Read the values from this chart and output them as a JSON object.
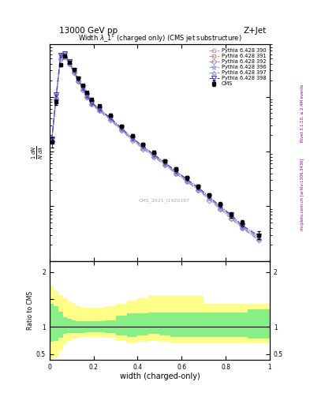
{
  "title_top": "13000 GeV pp",
  "title_right": "Z+Jet",
  "plot_title": "Width $\\lambda$_1$^1$ (charged only) (CMS jet substructure)",
  "xlabel": "width (charged-only)",
  "ylabel_ratio": "Ratio to CMS",
  "right_label_top": "Rivet 3.1.10, ≥ 2.4M events",
  "right_label_bot": "mcplots.cern.ch [arXiv:1306.3436]",
  "watermark": "CMS_2021_I1920187",
  "x_bins": [
    0.0,
    0.02,
    0.04,
    0.06,
    0.08,
    0.1,
    0.12,
    0.14,
    0.16,
    0.18,
    0.2,
    0.25,
    0.3,
    0.35,
    0.4,
    0.45,
    0.5,
    0.55,
    0.6,
    0.65,
    0.7,
    0.75,
    0.8,
    0.85,
    0.9,
    1.0
  ],
  "cms_values": [
    150,
    800,
    3800,
    5500,
    4300,
    3100,
    2200,
    1600,
    1200,
    900,
    680,
    460,
    290,
    195,
    135,
    98,
    68,
    48,
    33,
    23,
    16,
    11,
    7,
    5,
    3
  ],
  "cms_errors": [
    30,
    100,
    200,
    250,
    200,
    150,
    100,
    80,
    60,
    45,
    35,
    25,
    18,
    12,
    9,
    7,
    5,
    4,
    3,
    2,
    1.5,
    1,
    0.8,
    0.6,
    0.5
  ],
  "pythia_390": [
    160,
    950,
    5200,
    5700,
    4100,
    2850,
    1980,
    1390,
    1010,
    755,
    578,
    395,
    255,
    168,
    118,
    83,
    59,
    41,
    29,
    21,
    14,
    9.5,
    6.5,
    4.2,
    2.6
  ],
  "pythia_391": [
    158,
    920,
    5000,
    5500,
    4000,
    2800,
    1940,
    1360,
    990,
    738,
    562,
    385,
    248,
    163,
    114,
    81,
    57,
    40,
    28,
    20,
    14,
    9,
    6,
    4,
    2.5
  ],
  "pythia_392": [
    155,
    900,
    4900,
    5350,
    3950,
    2760,
    1910,
    1340,
    972,
    725,
    552,
    380,
    244,
    160,
    112,
    79,
    56,
    39,
    28,
    20,
    13,
    9,
    6,
    4,
    2.4
  ],
  "pythia_396": [
    168,
    1050,
    5700,
    6100,
    4350,
    2980,
    2080,
    1440,
    1045,
    780,
    598,
    410,
    267,
    176,
    123,
    87,
    61,
    43,
    31,
    22,
    15,
    10,
    6.8,
    4.4,
    2.8
  ],
  "pythia_397": [
    165,
    1020,
    5600,
    5950,
    4280,
    2940,
    2045,
    1415,
    1028,
    766,
    588,
    404,
    263,
    173,
    121,
    86,
    60,
    42,
    30,
    21,
    14,
    9.5,
    6.5,
    4.2,
    2.7
  ],
  "pythia_398": [
    170,
    1080,
    5800,
    6200,
    4400,
    3010,
    2100,
    1455,
    1055,
    788,
    605,
    415,
    270,
    178,
    125,
    88,
    62,
    44,
    31,
    22,
    15,
    10,
    7,
    4.5,
    2.9
  ],
  "ratio_yellow_low": [
    0.42,
    0.45,
    0.55,
    0.68,
    0.74,
    0.78,
    0.8,
    0.82,
    0.82,
    0.82,
    0.82,
    0.8,
    0.74,
    0.7,
    0.72,
    0.74,
    0.72,
    0.7,
    0.7,
    0.7,
    0.7,
    0.7,
    0.7,
    0.7,
    0.7
  ],
  "ratio_yellow_high": [
    1.75,
    1.65,
    1.58,
    1.52,
    1.46,
    1.42,
    1.38,
    1.35,
    1.35,
    1.35,
    1.35,
    1.38,
    1.42,
    1.48,
    1.52,
    1.56,
    1.56,
    1.56,
    1.56,
    1.56,
    1.42,
    1.42,
    1.42,
    1.42,
    1.42
  ],
  "ratio_green_low": [
    0.72,
    0.74,
    0.8,
    0.87,
    0.88,
    0.88,
    0.88,
    0.88,
    0.9,
    0.9,
    0.9,
    0.88,
    0.84,
    0.82,
    0.84,
    0.87,
    0.84,
    0.82,
    0.82,
    0.82,
    0.82,
    0.82,
    0.82,
    0.82,
    0.78
  ],
  "ratio_green_high": [
    1.42,
    1.38,
    1.28,
    1.18,
    1.15,
    1.12,
    1.1,
    1.1,
    1.1,
    1.1,
    1.1,
    1.12,
    1.2,
    1.24,
    1.24,
    1.26,
    1.26,
    1.26,
    1.26,
    1.26,
    1.26,
    1.26,
    1.26,
    1.26,
    1.32
  ],
  "line_colors": {
    "390": "#cc88bb",
    "391": "#cc8888",
    "392": "#9988cc",
    "396": "#88aacc",
    "397": "#8888dd",
    "398": "#3333aa"
  },
  "markers": {
    "390": "o",
    "391": "s",
    "392": "D",
    "396": "*",
    "397": "^",
    "398": "v"
  },
  "ylim_main": [
    1,
    9000
  ],
  "ylim_ratio": [
    0.4,
    2.2
  ],
  "xlim": [
    0.0,
    1.0
  ],
  "yellow_color": "#ffff88",
  "green_color": "#88ee88",
  "background_color": "#ffffff"
}
